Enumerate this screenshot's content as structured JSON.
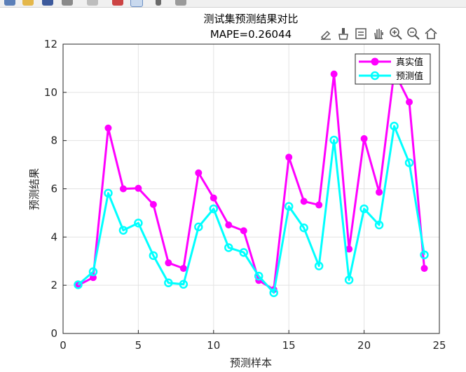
{
  "window": {
    "toolstrip_icons": [
      "new-figure-icon",
      "open-folder-icon",
      "save-icon",
      "print-icon",
      "link-icon",
      "insert-colorbar-icon",
      "insert-legend-icon",
      "cursor-icon",
      "property-editor-icon"
    ]
  },
  "axes_toolbar": {
    "icons": [
      "export-icon",
      "brush-icon",
      "data-tips-icon",
      "pan-hand-icon",
      "zoom-in-icon",
      "zoom-out-icon",
      "home-icon"
    ]
  },
  "chart_data": {
    "type": "line",
    "title": "测试集预测结果对比",
    "subtitle": "MAPE=0.26044",
    "xlabel": "预测样本",
    "ylabel": "预测结果",
    "xlim": [
      0,
      25
    ],
    "ylim": [
      0,
      12
    ],
    "xticks": [
      0,
      5,
      10,
      15,
      20,
      25
    ],
    "yticks": [
      0,
      2,
      4,
      6,
      8,
      10,
      12
    ],
    "grid": true,
    "legend_position": "top-right",
    "x": [
      1,
      2,
      3,
      4,
      5,
      6,
      7,
      8,
      9,
      10,
      11,
      12,
      13,
      14,
      15,
      16,
      17,
      18,
      19,
      20,
      21,
      22,
      23,
      24
    ],
    "series": [
      {
        "name": "真实值",
        "color": "#ff00ff",
        "marker": "filled-circle",
        "values": [
          2.0,
          2.32,
          8.52,
          6.0,
          6.02,
          5.35,
          2.93,
          2.7,
          6.66,
          5.62,
          4.5,
          4.26,
          2.2,
          1.82,
          7.31,
          5.48,
          5.33,
          10.76,
          3.5,
          8.08,
          5.86,
          10.86,
          9.6,
          2.7
        ]
      },
      {
        "name": "预测值",
        "color": "#00ffff",
        "marker": "open-circle",
        "values": [
          2.02,
          2.56,
          5.82,
          4.28,
          4.58,
          3.23,
          2.1,
          2.04,
          4.42,
          5.17,
          3.56,
          3.36,
          2.38,
          1.69,
          5.27,
          4.38,
          2.8,
          8.02,
          2.22,
          5.17,
          4.5,
          8.6,
          7.08,
          3.26
        ]
      }
    ]
  }
}
